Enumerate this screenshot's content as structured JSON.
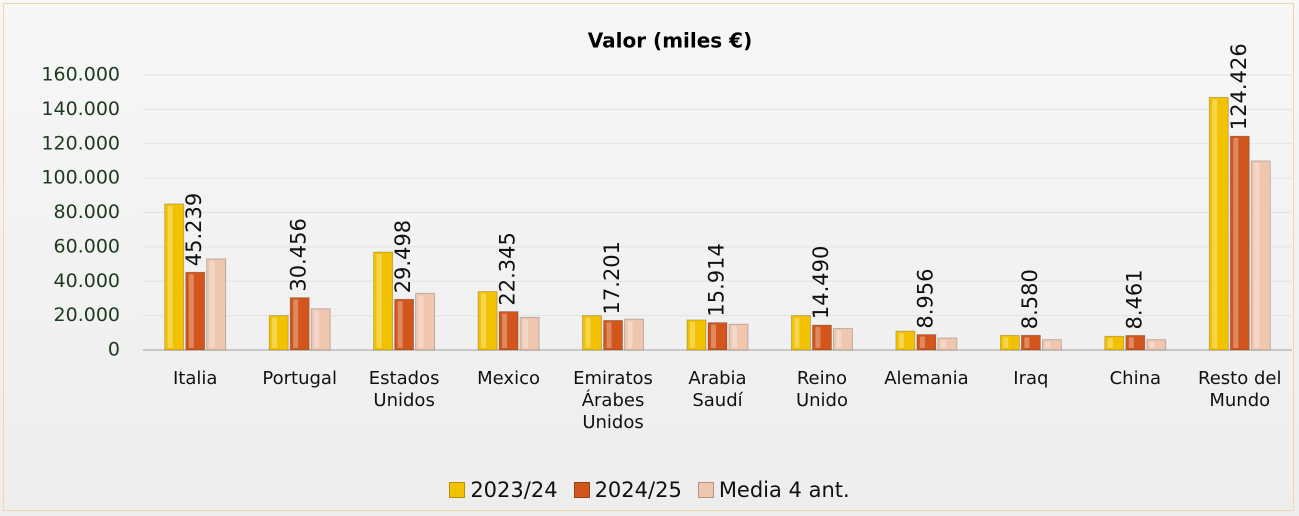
{
  "chart_data": {
    "type": "bar",
    "title": "Valor (miles €)",
    "categories": [
      "Italia",
      "Portugal",
      "Estados Unidos",
      "Mexico",
      "Emiratos Árabes Unidos",
      "Arabia Saudí",
      "Reino Unido",
      "Alemania",
      "Iraq",
      "China",
      "Resto del Mundo"
    ],
    "series": [
      {
        "name": "2023/24",
        "color": "#f2c200",
        "values": [
          85000,
          20000,
          57000,
          34000,
          20000,
          17500,
          20000,
          11000,
          8500,
          8000,
          147000
        ]
      },
      {
        "name": "2024/25",
        "color": "#d2561c",
        "values": [
          45239,
          30456,
          29498,
          22345,
          17201,
          15914,
          14490,
          8956,
          8580,
          8461,
          124426
        ],
        "value_labels": [
          "45.239",
          "30.456",
          "29.498",
          "22.345",
          "17.201",
          "15.914",
          "14.490",
          "8.956",
          "8.580",
          "8.461",
          "124.426"
        ]
      },
      {
        "name": "Media 4 ant.",
        "color": "#efc6ae",
        "values": [
          53000,
          24000,
          33000,
          19000,
          18000,
          15000,
          12500,
          7000,
          6000,
          6000,
          110000
        ]
      }
    ],
    "ylim": [
      0,
      160000
    ],
    "yticks": [
      0,
      {
        "value": 20000,
        "label": "20.000"
      },
      {
        "value": 40000,
        "label": "40.000"
      },
      {
        "value": 60000,
        "label": "60.000"
      },
      {
        "value": 80000,
        "label": "80.000"
      },
      {
        "value": 100000,
        "label": "100.000"
      },
      {
        "value": 120000,
        "label": "120.000"
      },
      {
        "value": 140000,
        "label": "140.000"
      },
      {
        "value": 160000,
        "label": "160.000"
      }
    ],
    "grid": true
  }
}
